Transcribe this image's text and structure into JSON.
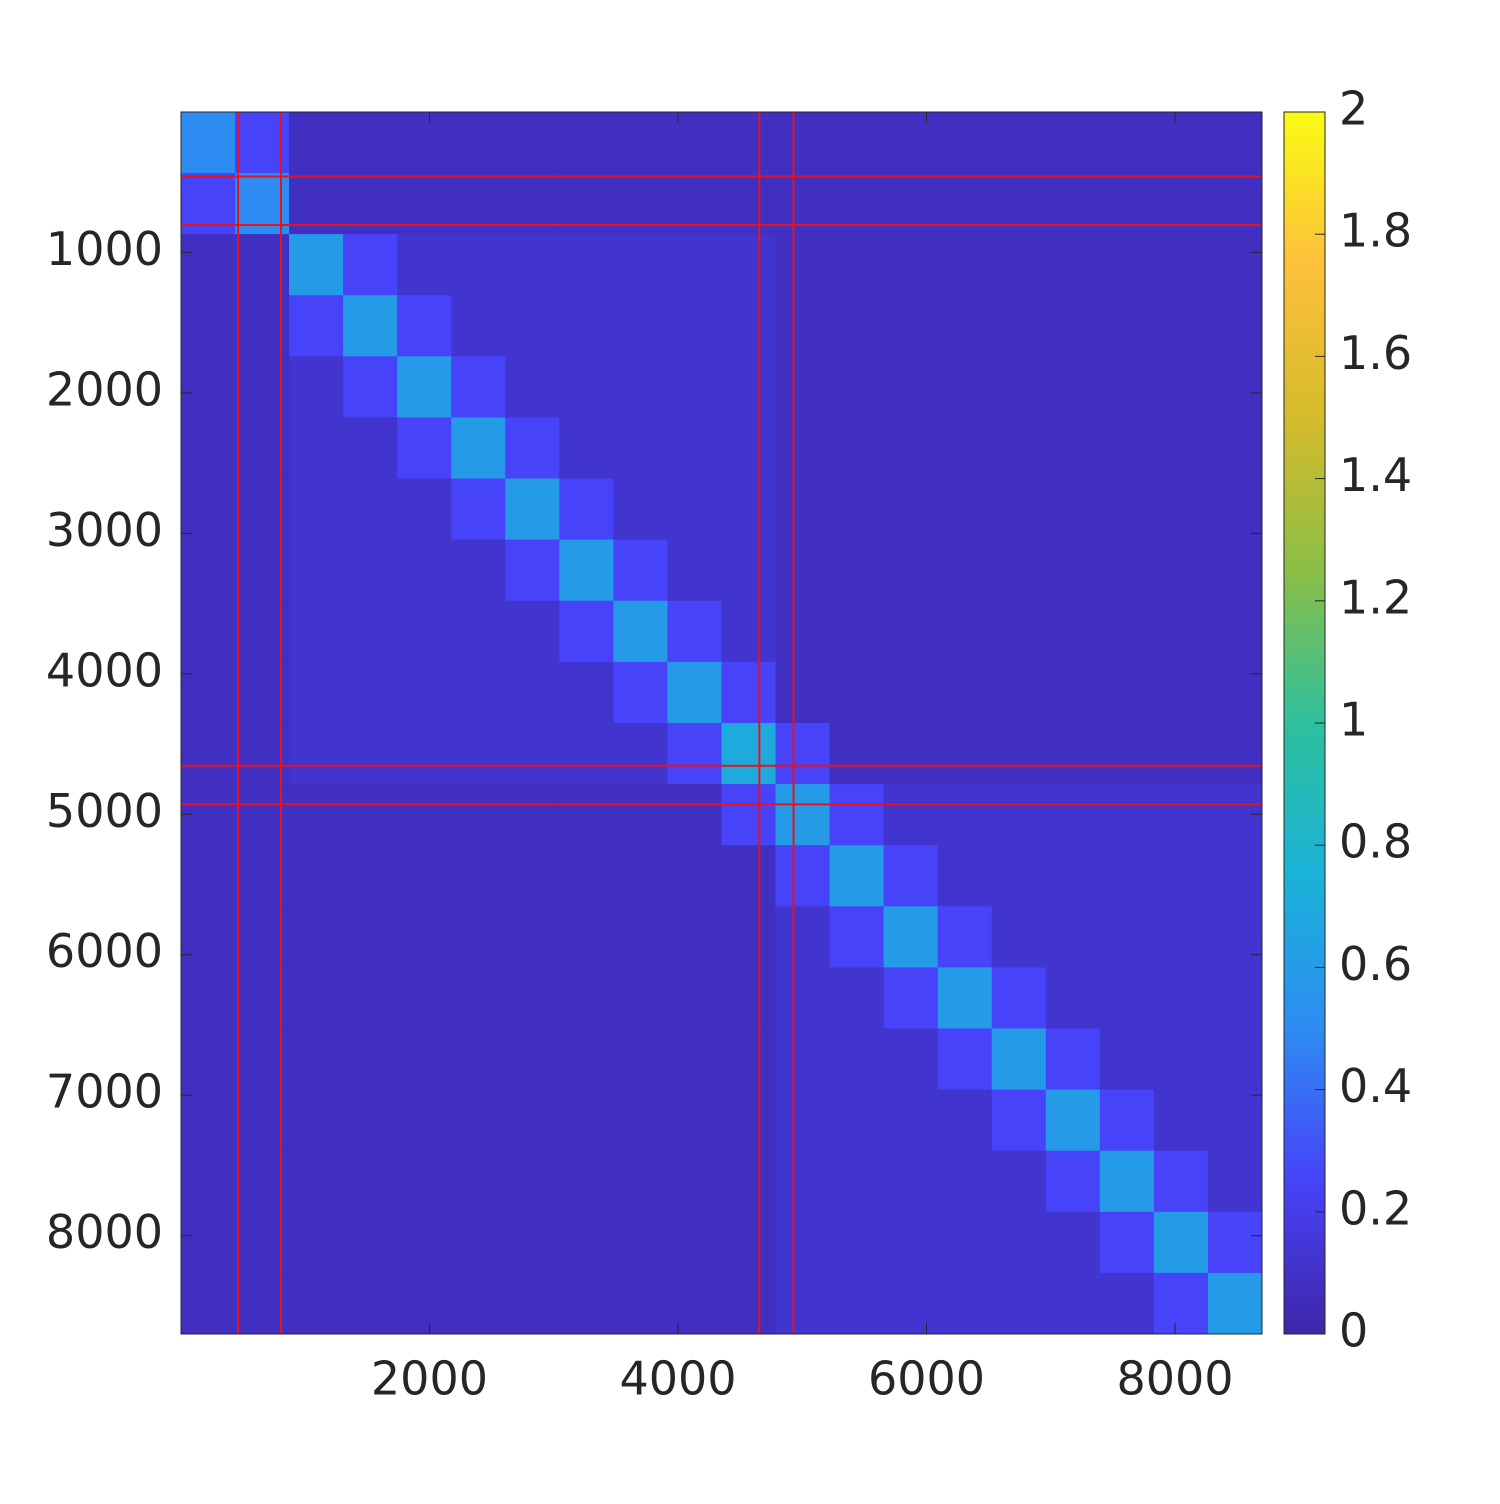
{
  "chart_data": {
    "type": "heatmap",
    "xlim": [
      0.5,
      8700
    ],
    "ylim": [
      0.5,
      8700
    ],
    "y_reversed": true,
    "xticks": [
      2000,
      4000,
      6000,
      8000
    ],
    "yticks": [
      1000,
      2000,
      3000,
      4000,
      5000,
      6000,
      7000,
      8000
    ],
    "xbins": [
      0.5,
      435,
      870,
      1305,
      1740,
      2175,
      2610,
      3045,
      3480,
      3915,
      4350,
      4785,
      5220,
      5655,
      6090,
      6525,
      6960,
      7395,
      7830,
      8265,
      8700
    ],
    "ybins": [
      0.5,
      435,
      870,
      1305,
      1740,
      2175,
      2610,
      3045,
      3480,
      3915,
      4350,
      4785,
      5220,
      5655,
      6090,
      6525,
      6960,
      7395,
      7830,
      8265,
      8700
    ],
    "z": [
      [
        0.5,
        0.25,
        0.08,
        0.08,
        0.08,
        0.08,
        0.08,
        0.08,
        0.08,
        0.08,
        0.08,
        0.08,
        0.08,
        0.08,
        0.08,
        0.08,
        0.08,
        0.08,
        0.08,
        0.08
      ],
      [
        0.25,
        0.5,
        0.08,
        0.08,
        0.08,
        0.08,
        0.08,
        0.08,
        0.08,
        0.08,
        0.08,
        0.08,
        0.08,
        0.08,
        0.08,
        0.08,
        0.08,
        0.08,
        0.08,
        0.08
      ],
      [
        0.08,
        0.08,
        0.6,
        0.25,
        0.12,
        0.12,
        0.12,
        0.12,
        0.12,
        0.12,
        0.12,
        0.08,
        0.08,
        0.08,
        0.08,
        0.08,
        0.08,
        0.08,
        0.08,
        0.08
      ],
      [
        0.08,
        0.08,
        0.25,
        0.6,
        0.25,
        0.12,
        0.12,
        0.12,
        0.12,
        0.12,
        0.12,
        0.08,
        0.08,
        0.08,
        0.08,
        0.08,
        0.08,
        0.08,
        0.08,
        0.08
      ],
      [
        0.08,
        0.08,
        0.12,
        0.25,
        0.6,
        0.25,
        0.12,
        0.12,
        0.12,
        0.12,
        0.12,
        0.08,
        0.08,
        0.08,
        0.08,
        0.08,
        0.08,
        0.08,
        0.08,
        0.08
      ],
      [
        0.08,
        0.08,
        0.12,
        0.12,
        0.25,
        0.6,
        0.25,
        0.12,
        0.12,
        0.12,
        0.12,
        0.08,
        0.08,
        0.08,
        0.08,
        0.08,
        0.08,
        0.08,
        0.08,
        0.08
      ],
      [
        0.08,
        0.08,
        0.12,
        0.12,
        0.12,
        0.25,
        0.6,
        0.25,
        0.12,
        0.12,
        0.12,
        0.08,
        0.08,
        0.08,
        0.08,
        0.08,
        0.08,
        0.08,
        0.08,
        0.08
      ],
      [
        0.08,
        0.08,
        0.12,
        0.12,
        0.12,
        0.12,
        0.25,
        0.6,
        0.25,
        0.12,
        0.12,
        0.08,
        0.08,
        0.08,
        0.08,
        0.08,
        0.08,
        0.08,
        0.08,
        0.08
      ],
      [
        0.08,
        0.08,
        0.12,
        0.12,
        0.12,
        0.12,
        0.12,
        0.25,
        0.6,
        0.25,
        0.12,
        0.08,
        0.08,
        0.08,
        0.08,
        0.08,
        0.08,
        0.08,
        0.08,
        0.08
      ],
      [
        0.08,
        0.08,
        0.12,
        0.12,
        0.12,
        0.12,
        0.12,
        0.12,
        0.25,
        0.6,
        0.25,
        0.08,
        0.08,
        0.08,
        0.08,
        0.08,
        0.08,
        0.08,
        0.08,
        0.08
      ],
      [
        0.08,
        0.08,
        0.12,
        0.12,
        0.12,
        0.12,
        0.12,
        0.12,
        0.12,
        0.25,
        0.7,
        0.25,
        0.08,
        0.08,
        0.08,
        0.08,
        0.08,
        0.08,
        0.08,
        0.08
      ],
      [
        0.08,
        0.08,
        0.08,
        0.08,
        0.08,
        0.08,
        0.08,
        0.08,
        0.08,
        0.08,
        0.25,
        0.6,
        0.25,
        0.12,
        0.12,
        0.12,
        0.12,
        0.12,
        0.12,
        0.12
      ],
      [
        0.08,
        0.08,
        0.08,
        0.08,
        0.08,
        0.08,
        0.08,
        0.08,
        0.08,
        0.08,
        0.08,
        0.25,
        0.6,
        0.25,
        0.12,
        0.12,
        0.12,
        0.12,
        0.12,
        0.12
      ],
      [
        0.08,
        0.08,
        0.08,
        0.08,
        0.08,
        0.08,
        0.08,
        0.08,
        0.08,
        0.08,
        0.08,
        0.12,
        0.25,
        0.6,
        0.25,
        0.12,
        0.12,
        0.12,
        0.12,
        0.12
      ],
      [
        0.08,
        0.08,
        0.08,
        0.08,
        0.08,
        0.08,
        0.08,
        0.08,
        0.08,
        0.08,
        0.08,
        0.12,
        0.12,
        0.25,
        0.6,
        0.25,
        0.12,
        0.12,
        0.12,
        0.12
      ],
      [
        0.08,
        0.08,
        0.08,
        0.08,
        0.08,
        0.08,
        0.08,
        0.08,
        0.08,
        0.08,
        0.08,
        0.12,
        0.12,
        0.12,
        0.25,
        0.6,
        0.25,
        0.12,
        0.12,
        0.12
      ],
      [
        0.08,
        0.08,
        0.08,
        0.08,
        0.08,
        0.08,
        0.08,
        0.08,
        0.08,
        0.08,
        0.08,
        0.12,
        0.12,
        0.12,
        0.12,
        0.25,
        0.6,
        0.25,
        0.12,
        0.12
      ],
      [
        0.08,
        0.08,
        0.08,
        0.08,
        0.08,
        0.08,
        0.08,
        0.08,
        0.08,
        0.08,
        0.08,
        0.12,
        0.12,
        0.12,
        0.12,
        0.12,
        0.25,
        0.6,
        0.25,
        0.12
      ],
      [
        0.08,
        0.08,
        0.08,
        0.08,
        0.08,
        0.08,
        0.08,
        0.08,
        0.08,
        0.08,
        0.08,
        0.12,
        0.12,
        0.12,
        0.12,
        0.12,
        0.12,
        0.25,
        0.6,
        0.25
      ],
      [
        0.08,
        0.08,
        0.08,
        0.08,
        0.08,
        0.08,
        0.08,
        0.08,
        0.08,
        0.08,
        0.08,
        0.12,
        0.12,
        0.12,
        0.12,
        0.12,
        0.12,
        0.12,
        0.25,
        0.6
      ]
    ],
    "dividers": [
      460,
      805,
      4655,
      4930
    ],
    "divider_color": "#e8121e",
    "clim": [
      0,
      2
    ],
    "cticks": [
      0,
      0.2,
      0.4,
      0.6,
      0.8,
      1,
      1.2,
      1.4,
      1.6,
      1.8,
      2
    ],
    "colormap": [
      "#3e26a8",
      "#4743f8",
      "#2d8cf2",
      "#1ab2d8",
      "#2ec09d",
      "#8bbe46",
      "#d5bb2b",
      "#fdc03a",
      "#f9fb15"
    ]
  }
}
